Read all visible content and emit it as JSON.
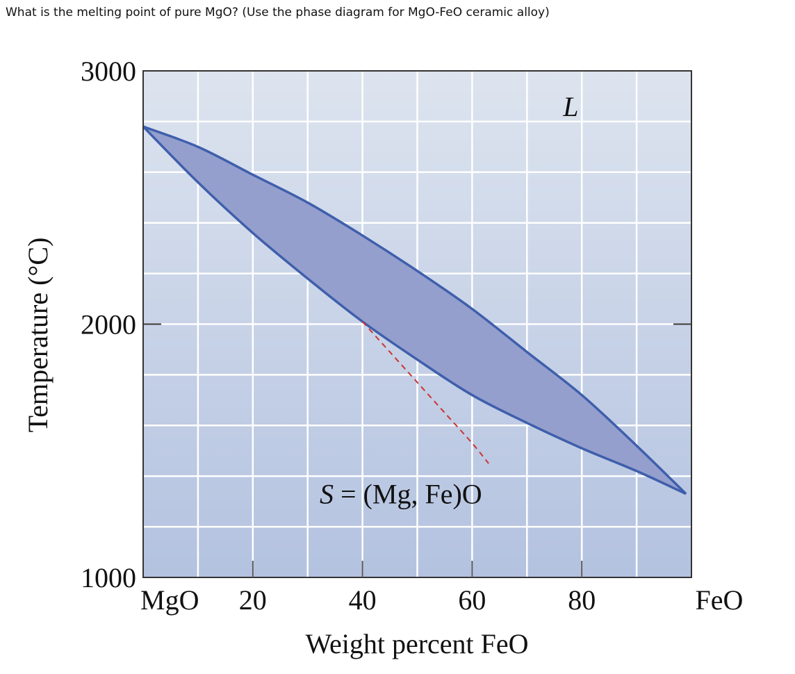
{
  "question": "What is the melting point of pure MgO? (Use the phase diagram for MgO-FeO ceramic alloy)",
  "chart_data": {
    "type": "line",
    "xlabel": "Weight percent FeO",
    "ylabel": "Temperature (°C)",
    "xlim": [
      0,
      100
    ],
    "ylim": [
      1000,
      3000
    ],
    "x_ticks": [
      {
        "value": 0,
        "label": "MgO"
      },
      {
        "value": 20,
        "label": "20"
      },
      {
        "value": 40,
        "label": "40"
      },
      {
        "value": 60,
        "label": "60"
      },
      {
        "value": 80,
        "label": "80"
      },
      {
        "value": 100,
        "label": "FeO"
      }
    ],
    "y_ticks": [
      {
        "value": 1000,
        "label": "1000"
      },
      {
        "value": 2000,
        "label": "2000"
      },
      {
        "value": 3000,
        "label": "3000"
      }
    ],
    "grid": true,
    "series": [
      {
        "x": [
          0,
          10,
          20,
          30,
          40,
          50,
          60,
          70,
          80,
          90,
          99
        ],
        "y": [
          2780,
          2700,
          2590,
          2480,
          2350,
          2210,
          2060,
          1890,
          1720,
          1520,
          1330
        ]
      },
      {
        "x": [
          0,
          10,
          20,
          30,
          40,
          50,
          60,
          70,
          80,
          90,
          99
        ],
        "y": [
          2780,
          2560,
          2360,
          2180,
          2010,
          1860,
          1720,
          1610,
          1510,
          1420,
          1330
        ]
      },
      {
        "x": [
          40,
          45,
          50,
          55,
          60,
          63
        ],
        "y": [
          2010,
          1890,
          1770,
          1650,
          1530,
          1450
        ],
        "style": "dashed"
      }
    ],
    "region_labels": [
      {
        "text": "L",
        "x": 78,
        "y": 2860
      },
      {
        "text": "S = (Mg, Fe)O",
        "x": 47,
        "y": 1330
      }
    ],
    "colors": {
      "two_phase_fill": "#959fcd",
      "boundary": "#3f5fac",
      "dashed": "#cc3333",
      "grid": "#ffffff",
      "bg_top": "#dde4ef",
      "bg_bottom": "#b3c2e0"
    }
  }
}
